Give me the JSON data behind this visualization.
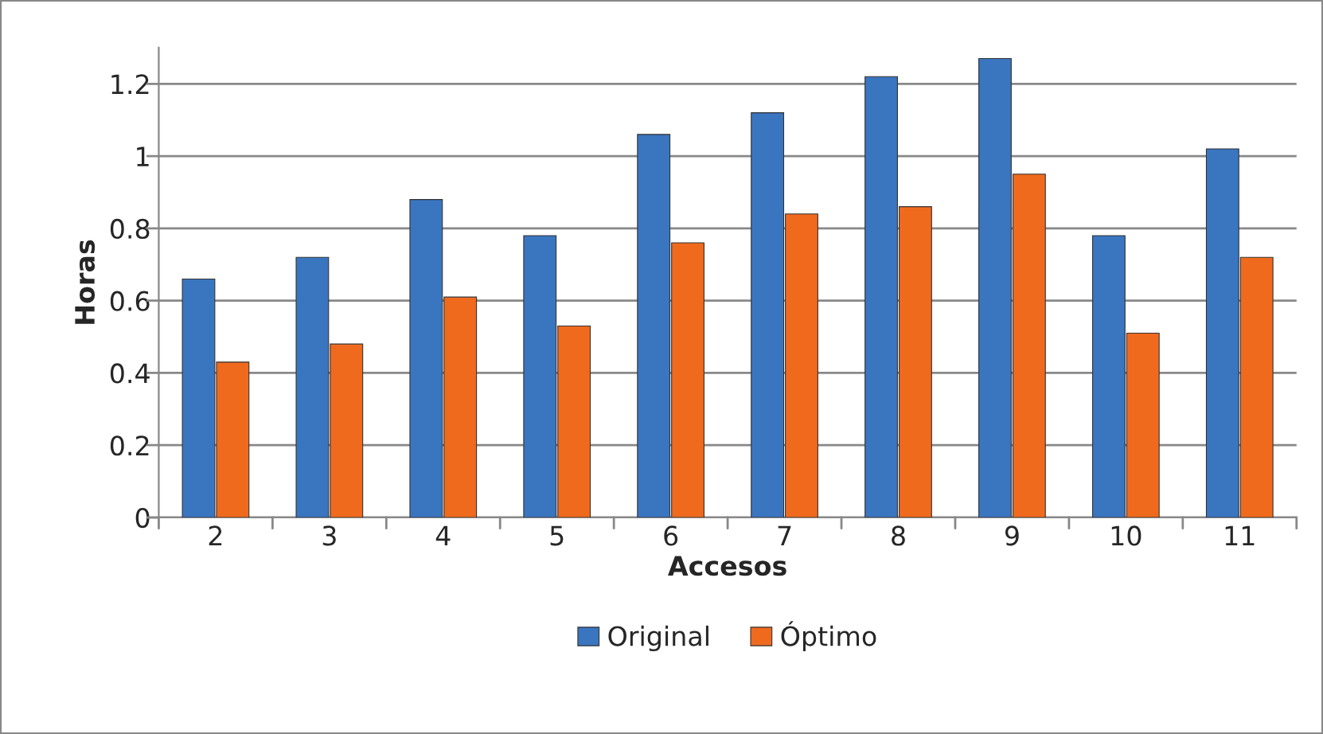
{
  "chart_data": {
    "type": "bar",
    "xlabel": "Accesos",
    "ylabel": "Horas",
    "categories": [
      "2",
      "3",
      "4",
      "5",
      "6",
      "7",
      "8",
      "9",
      "10",
      "11"
    ],
    "series": [
      {
        "name": "Original",
        "color": "#3a75c0",
        "values": [
          0.66,
          0.72,
          0.88,
          0.78,
          1.06,
          1.12,
          1.22,
          1.27,
          0.78,
          1.02
        ]
      },
      {
        "name": "Óptimo",
        "color": "#f06a1e",
        "values": [
          0.43,
          0.48,
          0.61,
          0.53,
          0.76,
          0.84,
          0.86,
          0.95,
          0.51,
          0.72
        ]
      }
    ],
    "ylim": [
      0,
      1.3
    ],
    "yticks": [
      0,
      0.2,
      0.4,
      0.6,
      0.8,
      1,
      1.2
    ],
    "grid": "y",
    "legend": "bottom"
  }
}
